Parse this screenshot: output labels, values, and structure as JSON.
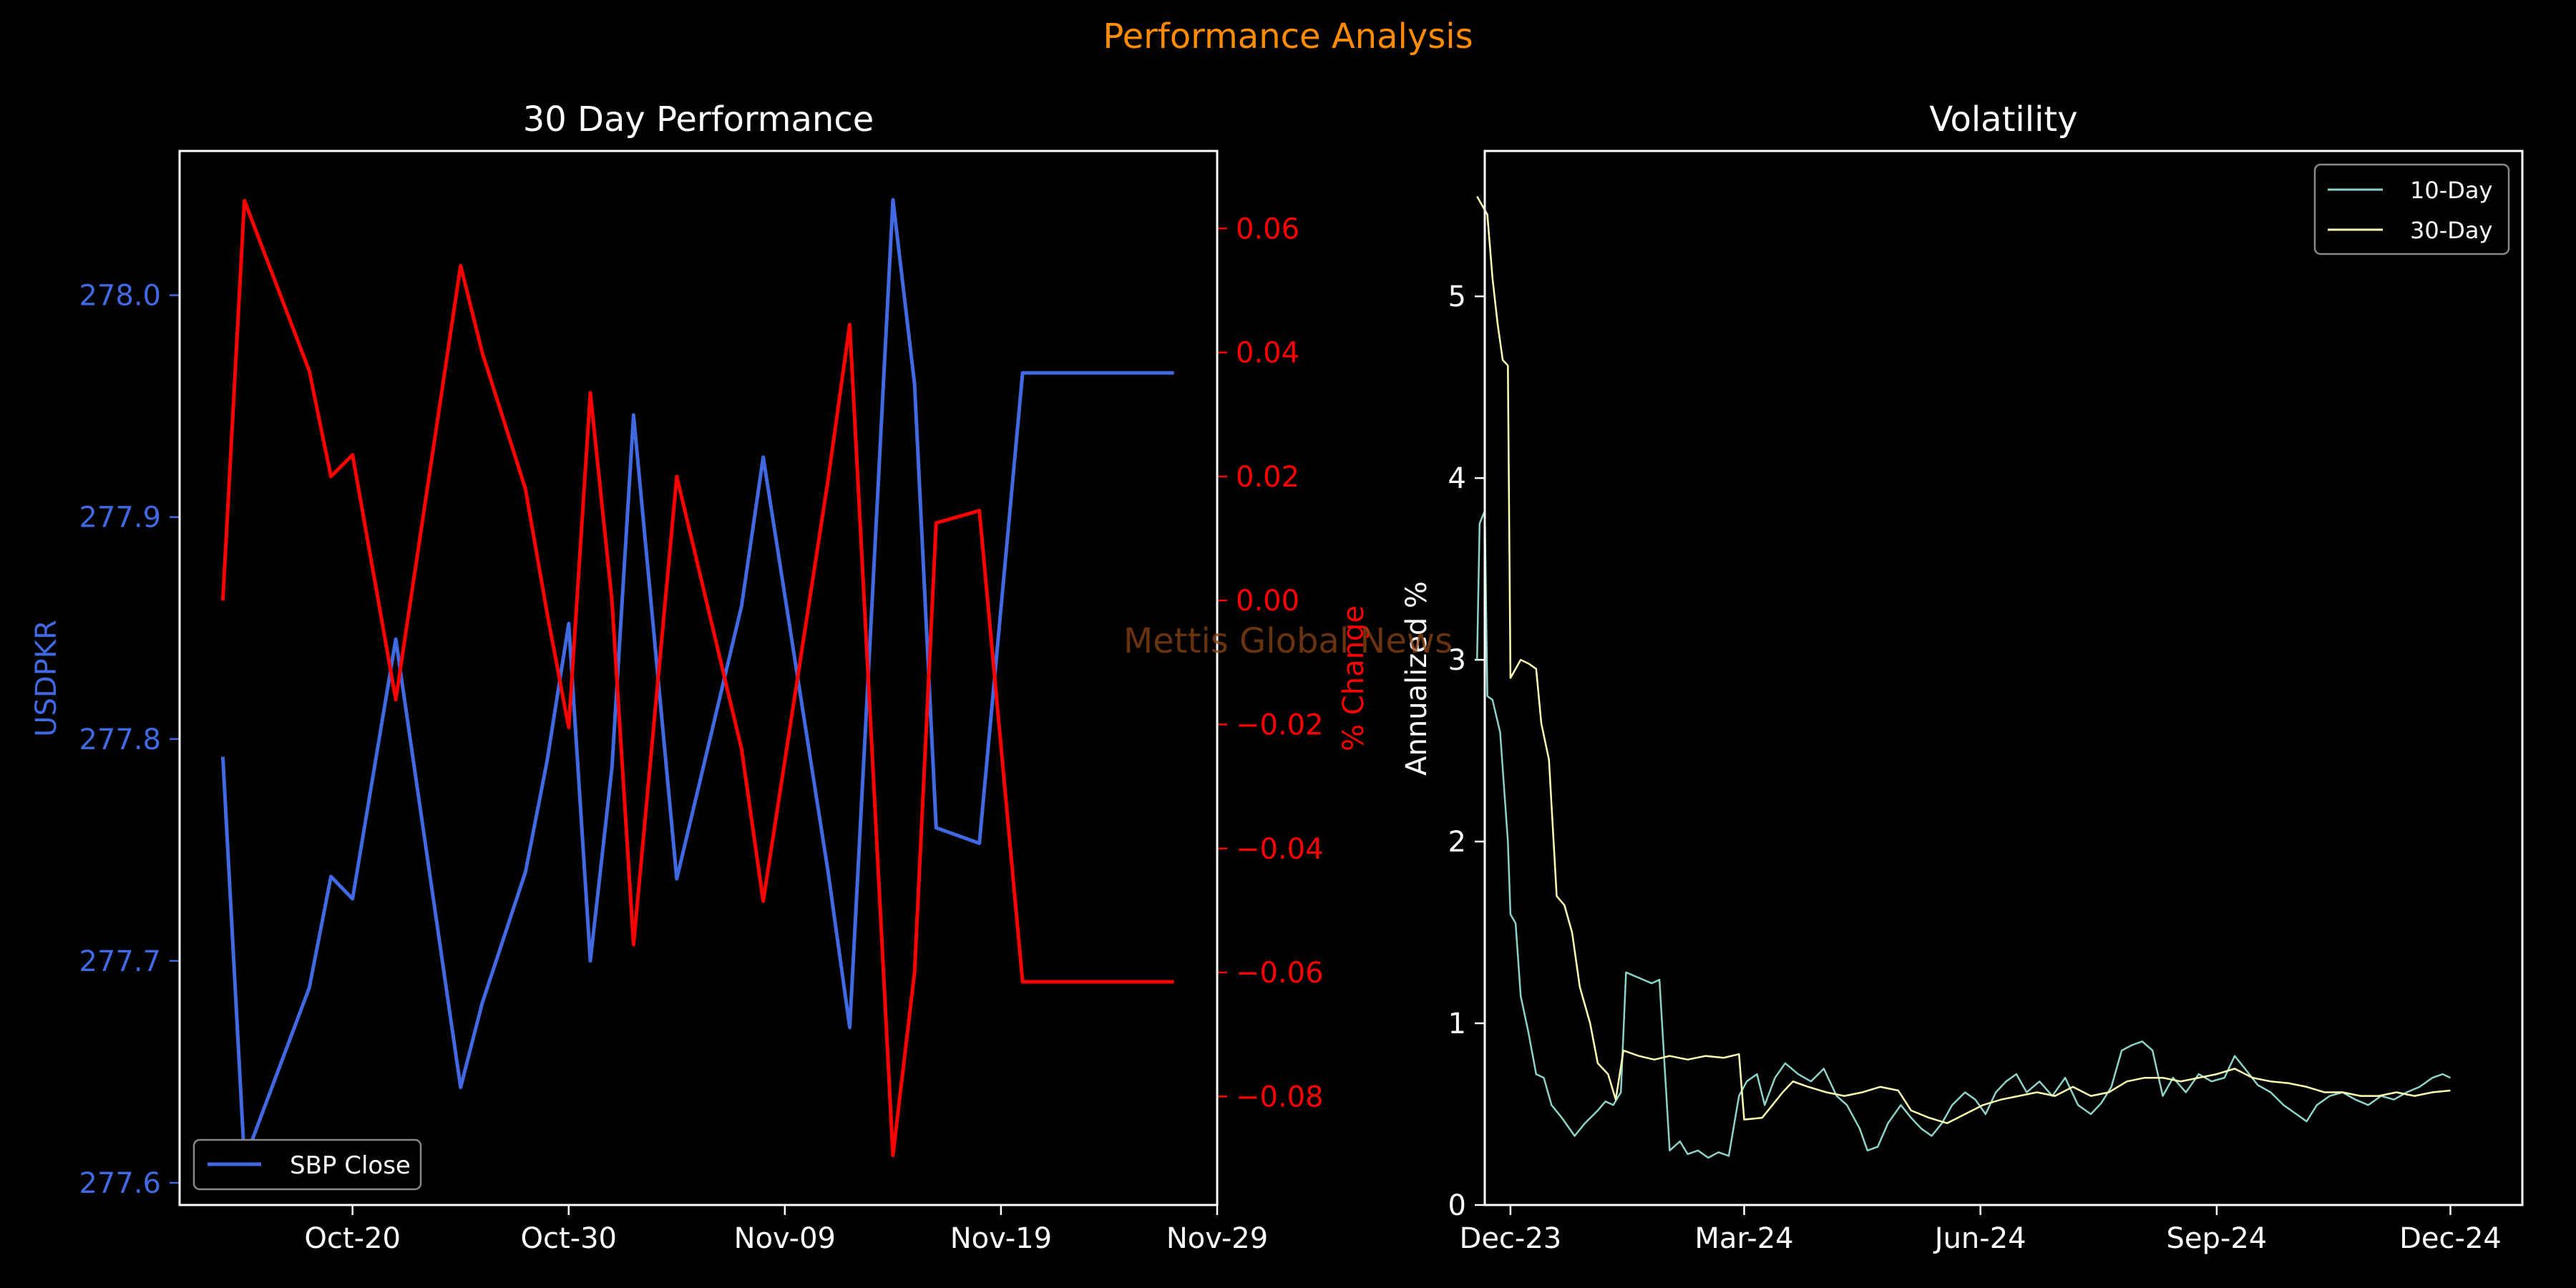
{
  "figure": {
    "title": "Performance Analysis",
    "watermark": "Mettis Global News",
    "colors": {
      "background": "#000000",
      "title": "#ff8c00",
      "watermark": "#8b4513",
      "axes": "#ffffff",
      "close": "#4169e1",
      "change": "#ff0000",
      "vol10": "#8dd3c7",
      "vol30": "#ffffb3"
    }
  },
  "chart_data": [
    {
      "type": "line",
      "title": "30 Day Performance",
      "ylabel": "USDPKR",
      "y2label": "% Change",
      "ylim": [
        277.59,
        278.065
      ],
      "y2lim": [
        -0.0975,
        0.0725
      ],
      "yticks": [
        "277.6",
        "277.7",
        "277.8",
        "277.9",
        "278.0"
      ],
      "y2ticks": [
        "−0.08",
        "−0.06",
        "−0.04",
        "−0.02",
        "0.00",
        "0.02",
        "0.04",
        "0.06"
      ],
      "xlim": [
        "2024-10-12",
        "2024-11-29"
      ],
      "xticks": [
        "Oct-20",
        "Oct-30",
        "Nov-09",
        "Nov-19",
        "Nov-29"
      ],
      "xtick_dates": [
        "2024-10-20",
        "2024-10-30",
        "2024-11-09",
        "2024-11-19",
        "2024-11-29"
      ],
      "x": [
        "2024-10-14",
        "2024-10-15",
        "2024-10-18",
        "2024-10-19",
        "2024-10-20",
        "2024-10-22",
        "2024-10-25",
        "2024-10-26",
        "2024-10-28",
        "2024-10-29",
        "2024-10-30",
        "2024-10-31",
        "2024-11-01",
        "2024-11-02",
        "2024-11-04",
        "2024-11-07",
        "2024-11-08",
        "2024-11-11",
        "2024-11-12",
        "2024-11-13",
        "2024-11-14",
        "2024-11-15",
        "2024-11-16",
        "2024-11-18",
        "2024-11-20",
        "2024-11-21",
        "2024-11-22",
        "2024-11-26",
        "2024-11-27"
      ],
      "legend": "bottom-left",
      "series": [
        {
          "name": "SBP Close",
          "axis": "left",
          "values": [
            277.792,
            277.61,
            277.688,
            277.738,
            277.728,
            277.845,
            277.643,
            277.681,
            277.74,
            277.79,
            277.852,
            277.7,
            277.787,
            277.946,
            277.737,
            277.86,
            277.927,
            277.74,
            277.67,
            277.855,
            278.043,
            277.96,
            277.76,
            277.753,
            277.965,
            277.965,
            277.965,
            277.965,
            277.965
          ]
        },
        {
          "axis": "right",
          "values": [
            0.0,
            0.0645,
            0.037,
            0.02,
            0.0235,
            -0.016,
            0.054,
            0.04,
            0.018,
            -0.002,
            -0.0205,
            0.0335,
            0.0,
            -0.0555,
            0.02,
            -0.024,
            -0.0485,
            0.0195,
            0.0445,
            -0.022,
            -0.0895,
            -0.06,
            0.0125,
            0.0145,
            -0.0615,
            -0.0615,
            -0.0615,
            -0.0615,
            -0.0615
          ]
        }
      ]
    },
    {
      "type": "line",
      "title": "Volatility",
      "ylabel": "Annualized %",
      "ylim": [
        0,
        5.8
      ],
      "yticks": [
        "0",
        "1",
        "2",
        "3",
        "4",
        "5"
      ],
      "xlim": [
        "2023-11-21",
        "2024-12-29"
      ],
      "xticks": [
        "Dec-23",
        "Mar-24",
        "Jun-24",
        "Sep-24",
        "Dec-24"
      ],
      "xtick_dates": [
        "2023-12-01",
        "2024-03-01",
        "2024-06-01",
        "2024-09-01",
        "2024-12-01"
      ],
      "legend": "top-right",
      "series": [
        {
          "name": "10-Day",
          "points": [
            [
              "2023-11-18",
              3.0
            ],
            [
              "2023-11-19",
              3.75
            ],
            [
              "2023-11-21",
              3.82
            ],
            [
              "2023-11-22",
              2.8
            ],
            [
              "2023-11-24",
              2.78
            ],
            [
              "2023-11-27",
              2.6
            ],
            [
              "2023-11-30",
              2.0
            ],
            [
              "2023-12-01",
              1.6
            ],
            [
              "2023-12-03",
              1.55
            ],
            [
              "2023-12-05",
              1.15
            ],
            [
              "2023-12-08",
              0.95
            ],
            [
              "2023-12-11",
              0.72
            ],
            [
              "2023-12-14",
              0.7
            ],
            [
              "2023-12-17",
              0.55
            ],
            [
              "2023-12-21",
              0.48
            ],
            [
              "2023-12-26",
              0.38
            ],
            [
              "2023-12-30",
              0.45
            ],
            [
              "2024-01-04",
              0.52
            ],
            [
              "2024-01-07",
              0.57
            ],
            [
              "2024-01-10",
              0.55
            ],
            [
              "2024-01-13",
              0.62
            ],
            [
              "2024-01-15",
              1.28
            ],
            [
              "2024-01-20",
              1.25
            ],
            [
              "2024-01-25",
              1.22
            ],
            [
              "2024-01-28",
              1.24
            ],
            [
              "2024-02-01",
              0.3
            ],
            [
              "2024-02-05",
              0.35
            ],
            [
              "2024-02-08",
              0.28
            ],
            [
              "2024-02-12",
              0.3
            ],
            [
              "2024-02-16",
              0.26
            ],
            [
              "2024-02-20",
              0.29
            ],
            [
              "2024-02-24",
              0.27
            ],
            [
              "2024-02-28",
              0.6
            ],
            [
              "2024-03-02",
              0.68
            ],
            [
              "2024-03-06",
              0.72
            ],
            [
              "2024-03-09",
              0.55
            ],
            [
              "2024-03-13",
              0.7
            ],
            [
              "2024-03-17",
              0.78
            ],
            [
              "2024-03-22",
              0.72
            ],
            [
              "2024-03-27",
              0.68
            ],
            [
              "2024-04-01",
              0.75
            ],
            [
              "2024-04-06",
              0.6
            ],
            [
              "2024-04-10",
              0.55
            ],
            [
              "2024-04-15",
              0.42
            ],
            [
              "2024-04-18",
              0.3
            ],
            [
              "2024-04-22",
              0.32
            ],
            [
              "2024-04-26",
              0.45
            ],
            [
              "2024-05-01",
              0.55
            ],
            [
              "2024-05-05",
              0.48
            ],
            [
              "2024-05-09",
              0.42
            ],
            [
              "2024-05-13",
              0.38
            ],
            [
              "2024-05-17",
              0.45
            ],
            [
              "2024-05-21",
              0.55
            ],
            [
              "2024-05-26",
              0.62
            ],
            [
              "2024-05-30",
              0.58
            ],
            [
              "2024-06-03",
              0.5
            ],
            [
              "2024-06-07",
              0.62
            ],
            [
              "2024-06-11",
              0.68
            ],
            [
              "2024-06-15",
              0.72
            ],
            [
              "2024-06-19",
              0.62
            ],
            [
              "2024-06-24",
              0.68
            ],
            [
              "2024-06-29",
              0.6
            ],
            [
              "2024-07-04",
              0.7
            ],
            [
              "2024-07-09",
              0.55
            ],
            [
              "2024-07-14",
              0.5
            ],
            [
              "2024-07-18",
              0.56
            ],
            [
              "2024-07-22",
              0.65
            ],
            [
              "2024-07-26",
              0.85
            ],
            [
              "2024-07-30",
              0.88
            ],
            [
              "2024-08-03",
              0.9
            ],
            [
              "2024-08-07",
              0.85
            ],
            [
              "2024-08-11",
              0.6
            ],
            [
              "2024-08-15",
              0.7
            ],
            [
              "2024-08-20",
              0.62
            ],
            [
              "2024-08-25",
              0.72
            ],
            [
              "2024-08-30",
              0.68
            ],
            [
              "2024-09-04",
              0.7
            ],
            [
              "2024-09-08",
              0.82
            ],
            [
              "2024-09-12",
              0.75
            ],
            [
              "2024-09-17",
              0.66
            ],
            [
              "2024-09-22",
              0.62
            ],
            [
              "2024-09-27",
              0.55
            ],
            [
              "2024-10-02",
              0.5
            ],
            [
              "2024-10-06",
              0.46
            ],
            [
              "2024-10-10",
              0.55
            ],
            [
              "2024-10-15",
              0.6
            ],
            [
              "2024-10-20",
              0.62
            ],
            [
              "2024-10-25",
              0.58
            ],
            [
              "2024-10-30",
              0.55
            ],
            [
              "2024-11-04",
              0.6
            ],
            [
              "2024-11-09",
              0.58
            ],
            [
              "2024-11-14",
              0.62
            ],
            [
              "2024-11-19",
              0.65
            ],
            [
              "2024-11-24",
              0.7
            ],
            [
              "2024-11-28",
              0.72
            ],
            [
              "2024-12-01",
              0.7
            ]
          ]
        },
        {
          "name": "30-Day",
          "points": [
            [
              "2023-11-18",
              5.55
            ],
            [
              "2023-11-20",
              5.5
            ],
            [
              "2023-11-22",
              5.45
            ],
            [
              "2023-11-24",
              5.1
            ],
            [
              "2023-11-26",
              4.85
            ],
            [
              "2023-11-28",
              4.65
            ],
            [
              "2023-11-30",
              4.62
            ],
            [
              "2023-12-01",
              2.9
            ],
            [
              "2023-12-03",
              2.95
            ],
            [
              "2023-12-05",
              3.0
            ],
            [
              "2023-12-08",
              2.98
            ],
            [
              "2023-12-11",
              2.95
            ],
            [
              "2023-12-13",
              2.65
            ],
            [
              "2023-12-16",
              2.45
            ],
            [
              "2023-12-19",
              1.7
            ],
            [
              "2023-12-22",
              1.65
            ],
            [
              "2023-12-25",
              1.5
            ],
            [
              "2023-12-28",
              1.2
            ],
            [
              "2024-01-01",
              1.0
            ],
            [
              "2024-01-04",
              0.78
            ],
            [
              "2024-01-08",
              0.72
            ],
            [
              "2024-01-11",
              0.58
            ],
            [
              "2024-01-14",
              0.85
            ],
            [
              "2024-01-20",
              0.82
            ],
            [
              "2024-01-26",
              0.8
            ],
            [
              "2024-02-01",
              0.82
            ],
            [
              "2024-02-08",
              0.8
            ],
            [
              "2024-02-15",
              0.82
            ],
            [
              "2024-02-22",
              0.81
            ],
            [
              "2024-02-28",
              0.83
            ],
            [
              "2024-03-01",
              0.47
            ],
            [
              "2024-03-08",
              0.48
            ],
            [
              "2024-03-12",
              0.55
            ],
            [
              "2024-03-16",
              0.62
            ],
            [
              "2024-03-20",
              0.68
            ],
            [
              "2024-03-26",
              0.65
            ],
            [
              "2024-04-02",
              0.62
            ],
            [
              "2024-04-09",
              0.6
            ],
            [
              "2024-04-16",
              0.62
            ],
            [
              "2024-04-23",
              0.65
            ],
            [
              "2024-04-30",
              0.63
            ],
            [
              "2024-05-05",
              0.52
            ],
            [
              "2024-05-12",
              0.48
            ],
            [
              "2024-05-19",
              0.45
            ],
            [
              "2024-05-26",
              0.5
            ],
            [
              "2024-06-02",
              0.55
            ],
            [
              "2024-06-09",
              0.58
            ],
            [
              "2024-06-16",
              0.6
            ],
            [
              "2024-06-23",
              0.62
            ],
            [
              "2024-06-30",
              0.6
            ],
            [
              "2024-07-07",
              0.65
            ],
            [
              "2024-07-14",
              0.6
            ],
            [
              "2024-07-21",
              0.62
            ],
            [
              "2024-07-28",
              0.68
            ],
            [
              "2024-08-04",
              0.7
            ],
            [
              "2024-08-11",
              0.7
            ],
            [
              "2024-08-18",
              0.68
            ],
            [
              "2024-08-25",
              0.7
            ],
            [
              "2024-09-01",
              0.72
            ],
            [
              "2024-09-08",
              0.75
            ],
            [
              "2024-09-15",
              0.7
            ],
            [
              "2024-09-22",
              0.68
            ],
            [
              "2024-09-29",
              0.67
            ],
            [
              "2024-10-06",
              0.65
            ],
            [
              "2024-10-13",
              0.62
            ],
            [
              "2024-10-20",
              0.62
            ],
            [
              "2024-10-27",
              0.6
            ],
            [
              "2024-11-03",
              0.6
            ],
            [
              "2024-11-10",
              0.62
            ],
            [
              "2024-11-17",
              0.6
            ],
            [
              "2024-11-24",
              0.62
            ],
            [
              "2024-12-01",
              0.63
            ]
          ]
        }
      ]
    }
  ]
}
